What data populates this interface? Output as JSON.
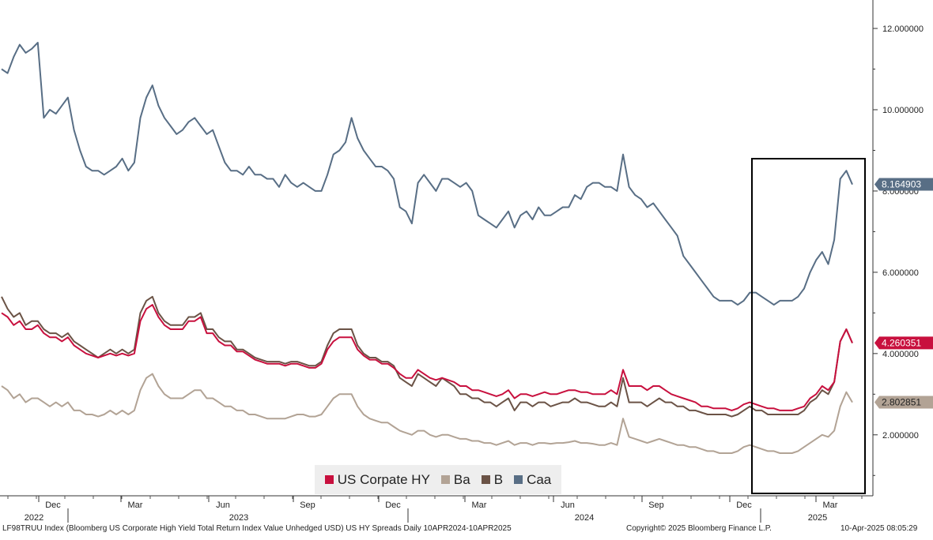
{
  "chart_data": {
    "type": "line",
    "title": "",
    "xlabel": "",
    "ylabel": "",
    "ylim": [
      0.5,
      12.7
    ],
    "y_ticks": [
      "2.000000",
      "4.000000",
      "6.000000",
      "8.000000",
      "10.000000",
      "12.000000"
    ],
    "y_tick_values": [
      2,
      4,
      6,
      8,
      10,
      12
    ],
    "x_month_ticks": [
      "Dec",
      "Mar",
      "Jun",
      "Sep",
      "Dec",
      "Mar",
      "Jun",
      "Sep",
      "Dec",
      "Mar"
    ],
    "x_year_labels": [
      "2022",
      "2023",
      "2024",
      "2025"
    ],
    "grid": false,
    "legend_position": "bottom-center",
    "highlight_box": true,
    "series": [
      {
        "name": "Caa",
        "color": "#586e85",
        "last_label": "8.164903",
        "last_value": 8.164903,
        "values": [
          11.0,
          10.9,
          11.3,
          11.6,
          11.4,
          11.5,
          11.65,
          9.8,
          10.0,
          9.9,
          10.1,
          10.3,
          9.5,
          9.0,
          8.6,
          8.5,
          8.5,
          8.4,
          8.5,
          8.6,
          8.8,
          8.5,
          8.7,
          9.8,
          10.3,
          10.6,
          10.1,
          9.8,
          9.6,
          9.4,
          9.5,
          9.7,
          9.8,
          9.6,
          9.4,
          9.5,
          9.1,
          8.7,
          8.5,
          8.5,
          8.4,
          8.6,
          8.4,
          8.4,
          8.3,
          8.3,
          8.1,
          8.4,
          8.2,
          8.1,
          8.2,
          8.1,
          8.0,
          8.0,
          8.4,
          8.9,
          9.0,
          9.2,
          9.8,
          9.3,
          9.0,
          8.8,
          8.6,
          8.6,
          8.5,
          8.3,
          7.6,
          7.5,
          7.2,
          8.2,
          8.4,
          8.2,
          8.0,
          8.3,
          8.3,
          8.2,
          8.1,
          8.2,
          8.0,
          7.4,
          7.3,
          7.2,
          7.1,
          7.3,
          7.5,
          7.1,
          7.4,
          7.5,
          7.3,
          7.6,
          7.4,
          7.4,
          7.5,
          7.6,
          7.6,
          7.9,
          7.8,
          8.1,
          8.2,
          8.2,
          8.1,
          8.1,
          8.0,
          8.9,
          8.1,
          7.9,
          7.8,
          7.6,
          7.7,
          7.5,
          7.3,
          7.1,
          6.9,
          6.4,
          6.2,
          6.0,
          5.8,
          5.6,
          5.4,
          5.3,
          5.3,
          5.3,
          5.2,
          5.3,
          5.5,
          5.5,
          5.4,
          5.3,
          5.2,
          5.3,
          5.3,
          5.3,
          5.4,
          5.6,
          6.0,
          6.3,
          6.5,
          6.2,
          6.8,
          8.3,
          8.5,
          8.16
        ]
      },
      {
        "name": "B",
        "color": "#6b5346",
        "values": [
          5.4,
          5.1,
          4.9,
          5.0,
          4.7,
          4.8,
          4.8,
          4.6,
          4.5,
          4.5,
          4.4,
          4.5,
          4.3,
          4.2,
          4.1,
          4.0,
          3.9,
          4.0,
          4.1,
          4.0,
          4.1,
          4.0,
          4.1,
          5.0,
          5.3,
          5.4,
          5.0,
          4.8,
          4.7,
          4.7,
          4.7,
          4.9,
          4.9,
          5.0,
          4.6,
          4.6,
          4.4,
          4.3,
          4.3,
          4.1,
          4.1,
          4.0,
          3.9,
          3.85,
          3.8,
          3.8,
          3.8,
          3.75,
          3.8,
          3.8,
          3.75,
          3.7,
          3.7,
          3.8,
          4.2,
          4.5,
          4.6,
          4.6,
          4.6,
          4.2,
          4.0,
          3.9,
          3.9,
          3.8,
          3.8,
          3.7,
          3.4,
          3.3,
          3.2,
          3.5,
          3.4,
          3.3,
          3.2,
          3.4,
          3.3,
          3.2,
          3.0,
          3.0,
          2.9,
          2.9,
          2.8,
          2.8,
          2.7,
          2.8,
          2.9,
          2.6,
          2.8,
          2.8,
          2.7,
          2.8,
          2.8,
          2.7,
          2.75,
          2.8,
          2.8,
          2.9,
          2.8,
          2.8,
          2.75,
          2.7,
          2.7,
          2.8,
          2.7,
          3.4,
          2.8,
          2.8,
          2.8,
          2.7,
          2.8,
          2.9,
          2.8,
          2.8,
          2.7,
          2.7,
          2.6,
          2.6,
          2.55,
          2.5,
          2.5,
          2.5,
          2.5,
          2.45,
          2.5,
          2.6,
          2.7,
          2.6,
          2.6,
          2.5,
          2.5,
          2.5,
          2.5,
          2.5,
          2.5,
          2.6,
          2.8,
          2.9,
          3.1,
          3.0,
          3.3,
          4.3,
          4.6,
          4.26
        ]
      },
      {
        "name": "US Corpate HY",
        "color": "#c8103e",
        "last_label": "4.260351",
        "last_value": 4.260351,
        "values": [
          5.0,
          4.9,
          4.7,
          4.8,
          4.6,
          4.6,
          4.7,
          4.5,
          4.4,
          4.4,
          4.3,
          4.4,
          4.2,
          4.1,
          4.0,
          3.95,
          3.9,
          3.95,
          4.0,
          3.95,
          4.0,
          3.95,
          4.0,
          4.8,
          5.1,
          5.2,
          4.9,
          4.7,
          4.6,
          4.6,
          4.6,
          4.8,
          4.8,
          4.9,
          4.5,
          4.5,
          4.3,
          4.2,
          4.2,
          4.05,
          4.05,
          3.95,
          3.85,
          3.8,
          3.75,
          3.75,
          3.75,
          3.7,
          3.75,
          3.75,
          3.7,
          3.65,
          3.65,
          3.75,
          4.1,
          4.3,
          4.4,
          4.4,
          4.4,
          4.1,
          3.95,
          3.85,
          3.85,
          3.75,
          3.75,
          3.65,
          3.5,
          3.4,
          3.4,
          3.6,
          3.5,
          3.4,
          3.35,
          3.4,
          3.35,
          3.3,
          3.2,
          3.2,
          3.1,
          3.1,
          3.05,
          3.0,
          2.95,
          3.0,
          3.1,
          2.9,
          3.0,
          3.0,
          2.95,
          3.0,
          3.05,
          3.0,
          3.0,
          3.05,
          3.1,
          3.1,
          3.05,
          3.05,
          3.0,
          3.0,
          3.0,
          3.1,
          3.0,
          3.6,
          3.2,
          3.2,
          3.2,
          3.1,
          3.2,
          3.2,
          3.1,
          3.0,
          2.95,
          2.9,
          2.85,
          2.8,
          2.7,
          2.7,
          2.65,
          2.65,
          2.65,
          2.6,
          2.65,
          2.75,
          2.8,
          2.75,
          2.7,
          2.65,
          2.65,
          2.6,
          2.6,
          2.6,
          2.65,
          2.7,
          2.9,
          3.0,
          3.2,
          3.1,
          3.3,
          4.3,
          4.6,
          4.26
        ]
      },
      {
        "name": "Ba",
        "color": "#b2a395",
        "last_label": "2.802851",
        "last_value": 2.802851,
        "values": [
          3.2,
          3.1,
          2.9,
          3.0,
          2.8,
          2.9,
          2.9,
          2.8,
          2.7,
          2.8,
          2.7,
          2.8,
          2.6,
          2.6,
          2.5,
          2.5,
          2.45,
          2.5,
          2.6,
          2.5,
          2.6,
          2.5,
          2.6,
          3.1,
          3.4,
          3.5,
          3.2,
          3.0,
          2.9,
          2.9,
          2.9,
          3.0,
          3.1,
          3.1,
          2.9,
          2.9,
          2.8,
          2.7,
          2.7,
          2.6,
          2.6,
          2.5,
          2.5,
          2.45,
          2.4,
          2.4,
          2.4,
          2.4,
          2.45,
          2.5,
          2.5,
          2.45,
          2.45,
          2.5,
          2.7,
          2.9,
          3.0,
          3.0,
          3.0,
          2.7,
          2.5,
          2.4,
          2.35,
          2.3,
          2.3,
          2.2,
          2.1,
          2.05,
          2.0,
          2.1,
          2.1,
          2.0,
          1.95,
          2.0,
          2.0,
          1.95,
          1.9,
          1.9,
          1.85,
          1.85,
          1.8,
          1.8,
          1.75,
          1.8,
          1.85,
          1.75,
          1.8,
          1.8,
          1.75,
          1.8,
          1.8,
          1.78,
          1.8,
          1.8,
          1.82,
          1.85,
          1.8,
          1.8,
          1.78,
          1.75,
          1.75,
          1.8,
          1.75,
          2.4,
          1.95,
          1.9,
          1.85,
          1.8,
          1.85,
          1.9,
          1.85,
          1.8,
          1.75,
          1.75,
          1.7,
          1.7,
          1.65,
          1.6,
          1.6,
          1.55,
          1.55,
          1.55,
          1.6,
          1.7,
          1.75,
          1.7,
          1.65,
          1.6,
          1.6,
          1.55,
          1.55,
          1.55,
          1.6,
          1.7,
          1.8,
          1.9,
          2.0,
          1.95,
          2.1,
          2.7,
          3.05,
          2.8
        ]
      }
    ]
  },
  "footer": {
    "source": "LF98TRUU Index (Bloomberg US Corporate High Yield Total Return Index Value Unhedged USD) US HY Spreads  Daily 10APR2024-10APR2025",
    "copyright": "Copyright© 2025 Bloomberg Finance L.P.",
    "timestamp": "10-Apr-2025 08:05:29"
  },
  "legend": [
    {
      "label": "US Corpate HY",
      "color": "#c8103e"
    },
    {
      "label": "Ba",
      "color": "#b2a395"
    },
    {
      "label": "B",
      "color": "#6b5346"
    },
    {
      "label": "Caa",
      "color": "#586e85"
    }
  ]
}
